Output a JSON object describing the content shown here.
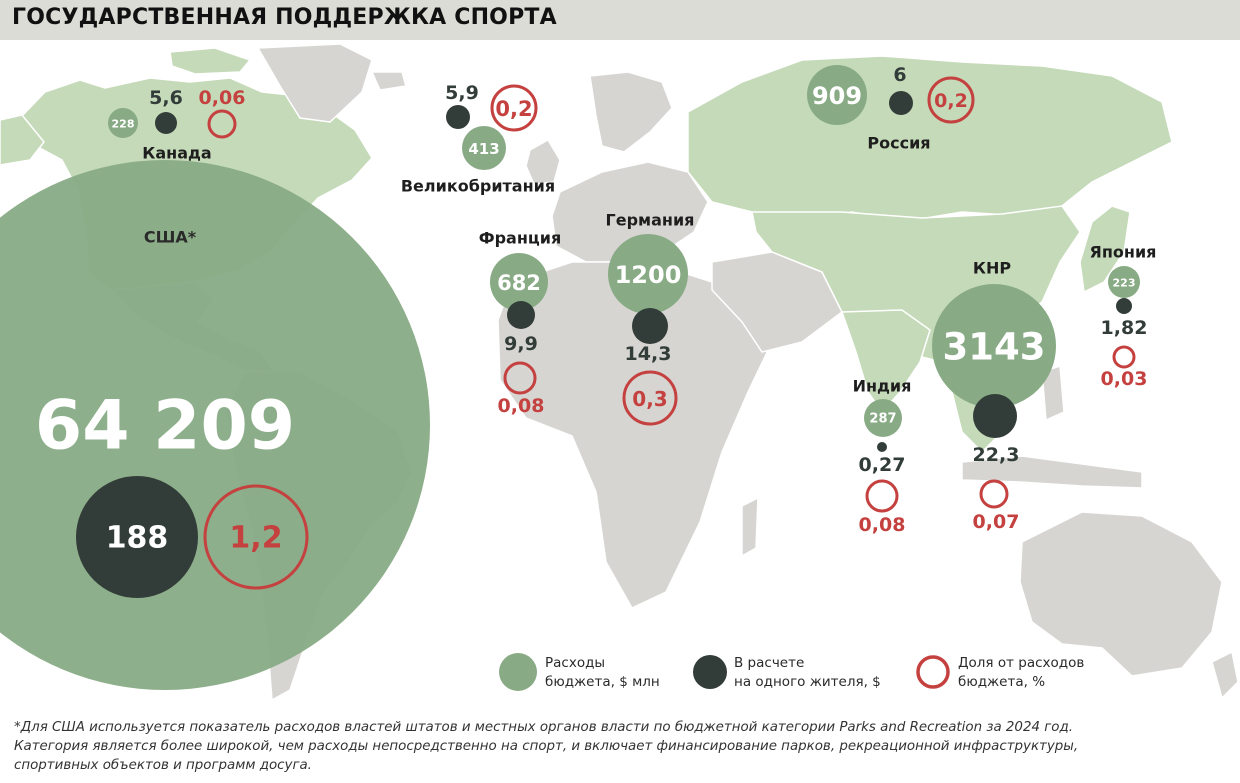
{
  "title": "ГОСУДАРСТВЕННАЯ ПОДДЕРЖКА СПОРТА",
  "colors": {
    "budget": "#88ab85",
    "per_capita": "#323c38",
    "share": "#c4413f",
    "land_light_green": "#c5dab9",
    "land_grey": "#d6d5d2",
    "country_border": "#ffffff"
  },
  "countries": [
    {
      "id": "usa",
      "name": "США*",
      "budget": "64 209",
      "per_capita": "188",
      "share": "1,2"
    },
    {
      "id": "canada",
      "name": "Канада",
      "budget": "228",
      "per_capita": "5,6",
      "share": "0,06"
    },
    {
      "id": "uk",
      "name": "Великобритания",
      "budget": "413",
      "per_capita": "5,9",
      "share": "0,2"
    },
    {
      "id": "russia",
      "name": "Россия",
      "budget": "909",
      "per_capita": "6",
      "share": "0,2"
    },
    {
      "id": "france",
      "name": "Франция",
      "budget": "682",
      "per_capita": "9,9",
      "share": "0,08"
    },
    {
      "id": "germany",
      "name": "Германия",
      "budget": "1200",
      "per_capita": "14,3",
      "share": "0,3"
    },
    {
      "id": "china",
      "name": "КНР",
      "budget": "3143",
      "per_capita": "22,3",
      "share": "0,07"
    },
    {
      "id": "india",
      "name": "Индия",
      "budget": "287",
      "per_capita": "0,27",
      "share": "0,08"
    },
    {
      "id": "japan",
      "name": "Япония",
      "budget": "223",
      "per_capita": "1,82",
      "share": "0,03"
    }
  ],
  "legend": [
    {
      "id": "budget",
      "line1": "Расходы",
      "line2": "бюджета, $ млн"
    },
    {
      "id": "per_capita",
      "line1": "В расчете",
      "line2": "на одного жителя, $"
    },
    {
      "id": "share",
      "line1": "Доля от расходов",
      "line2": "бюджета, %"
    }
  ],
  "footnote": [
    "*Для США используется показатель расходов властей штатов и местных органов власти по бюджетной категории Parks and Recreation за 2024 год.",
    "Категория является более широкой, чем расходы непосредственно на спорт, и включает финансирование парков, рекреационной инфраструктуры,",
    "спортивных объектов и программ досуга."
  ]
}
